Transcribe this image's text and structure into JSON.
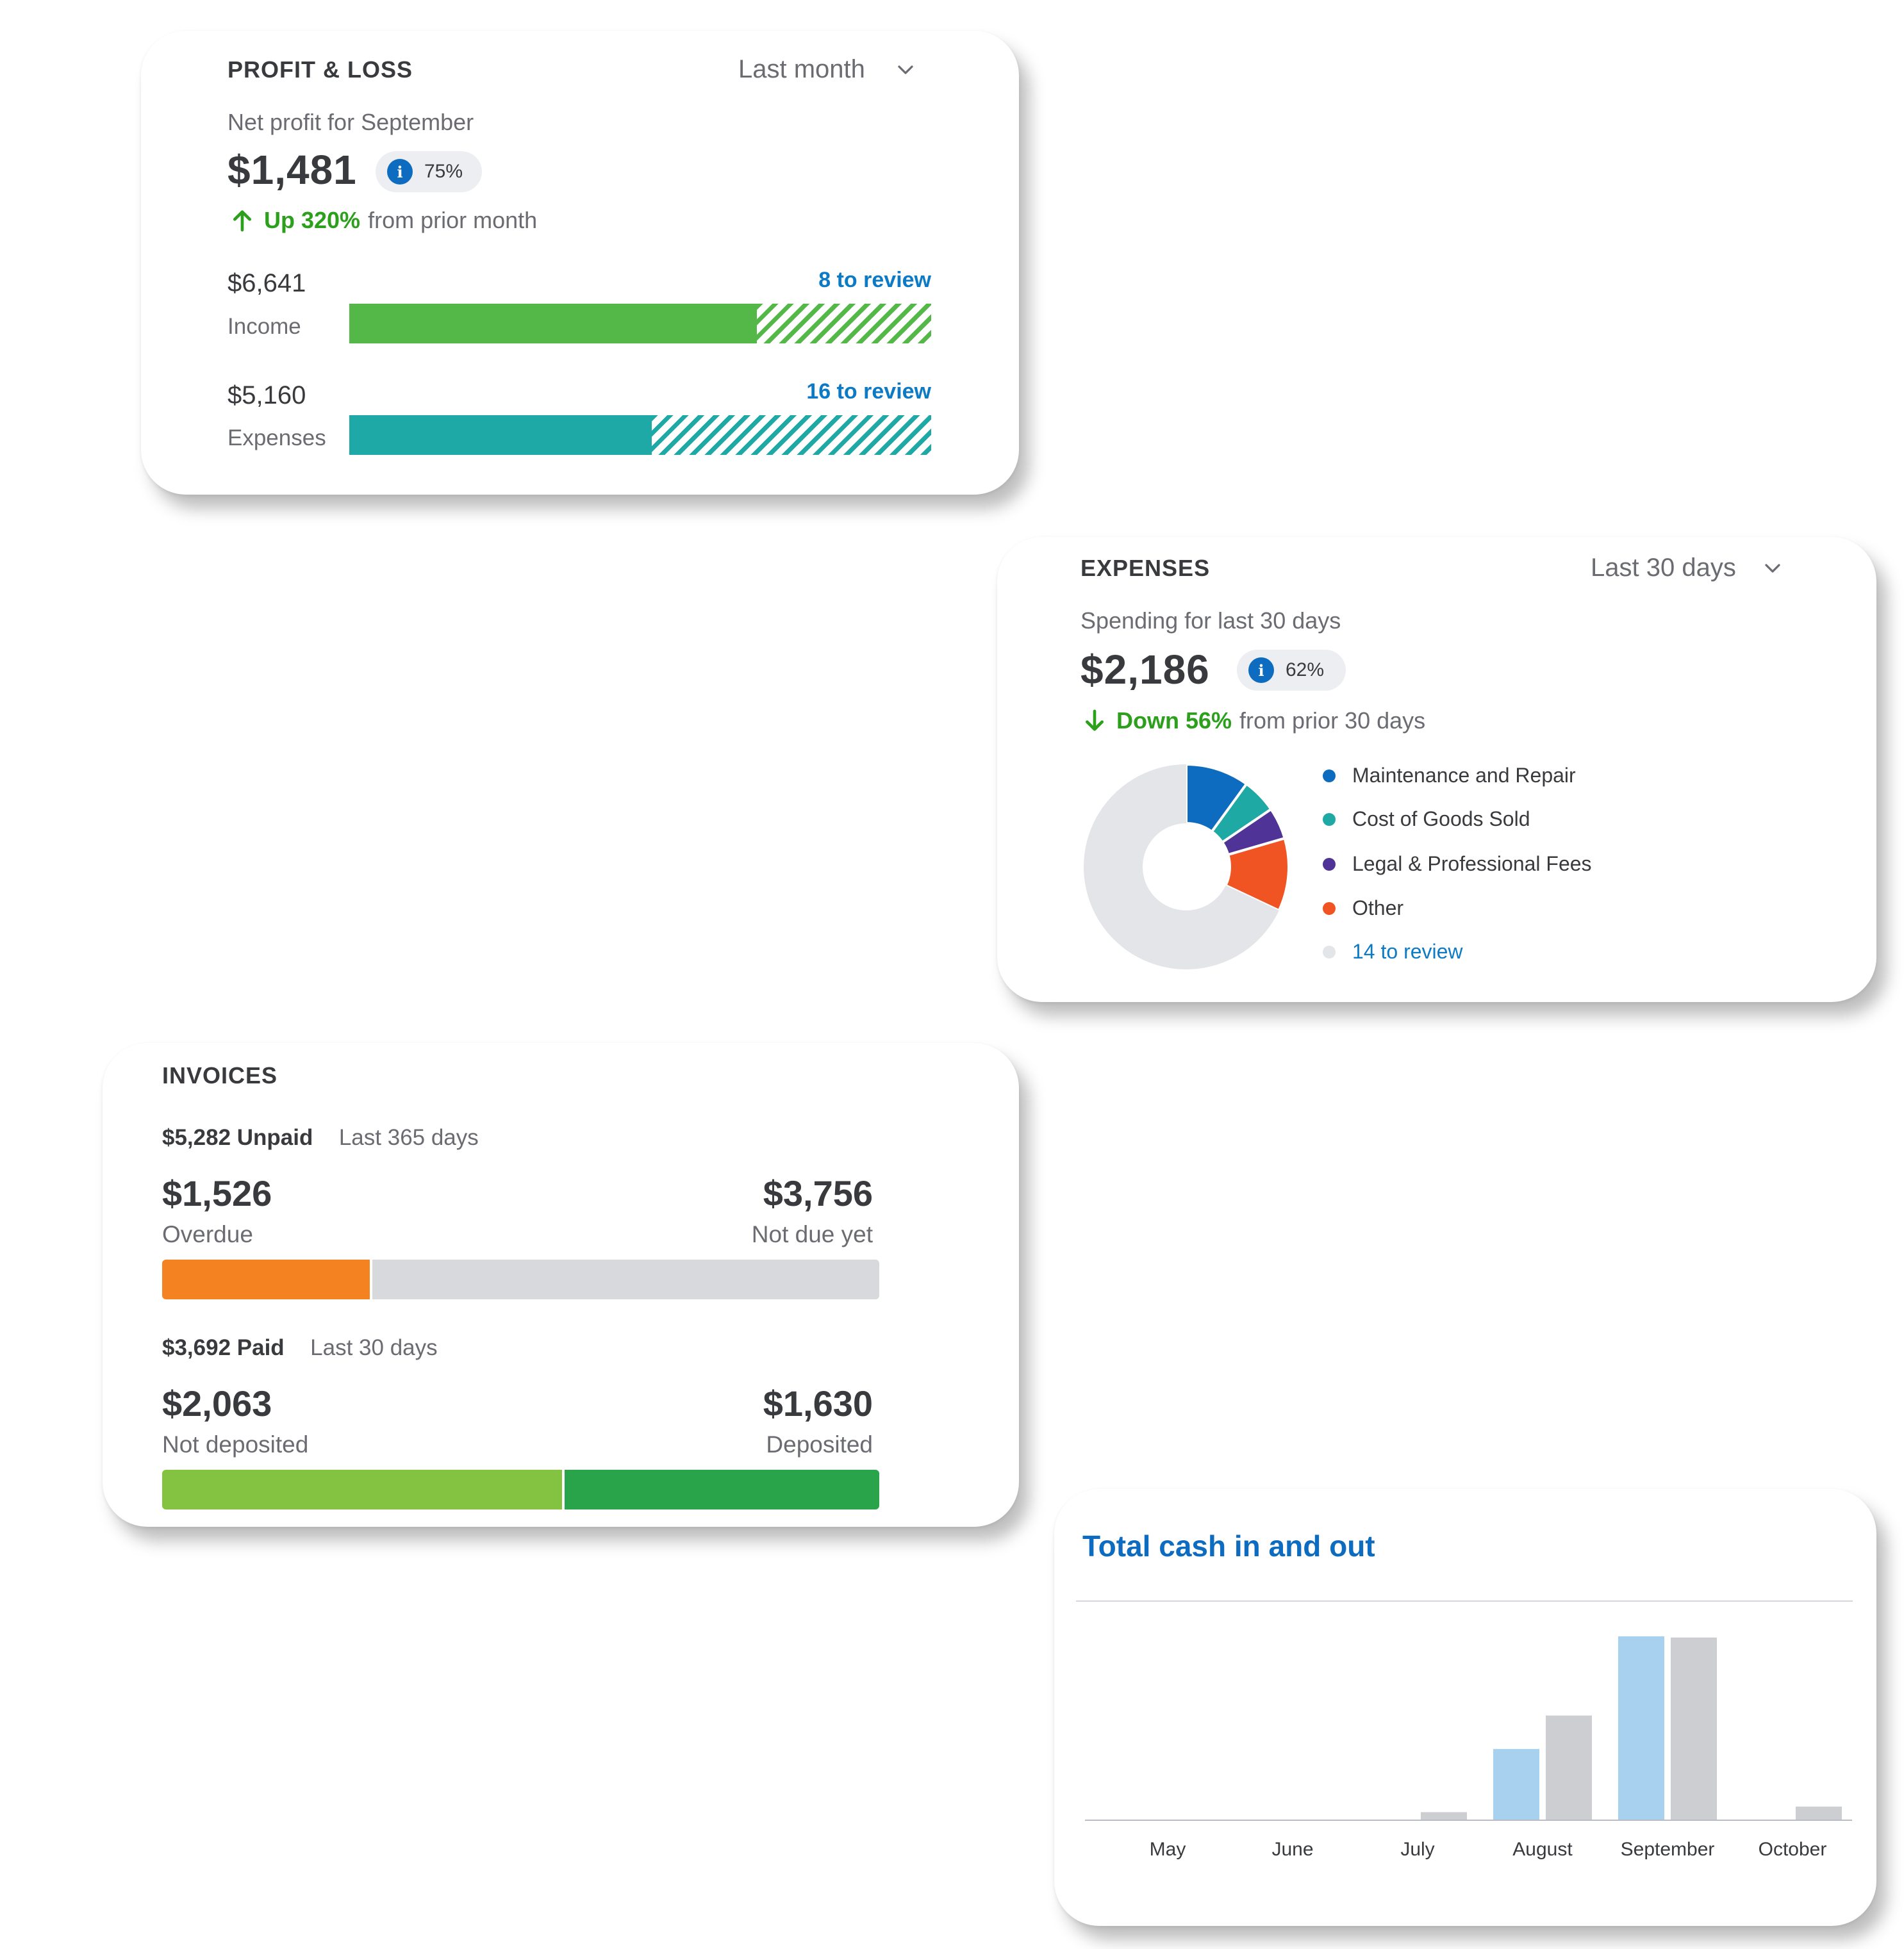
{
  "colors": {
    "income": "#53b848",
    "expenses_bar": "#1ea8a6",
    "maintenance": "#0d6cc0",
    "cogs": "#1fa9a4",
    "legal": "#4f3396",
    "other": "#f05423",
    "review": "#e3e5e8",
    "overdue": "#f58220",
    "not_due": "#d7d9dd",
    "not_deposited": "#84c341",
    "deposited": "#29a44a",
    "cash_in": "#a8d1f0",
    "cash_out": "#ccced2",
    "link": "#0d7ac6",
    "positive": "#2ca01c"
  },
  "profit_loss": {
    "title": "PROFIT & LOSS",
    "range": "Last month",
    "subtitle": "Net profit for September",
    "amount": "$1,481",
    "badge": "75%",
    "trend_strong": "Up 320%",
    "trend_rest": "from prior month",
    "income": {
      "value": "$6,641",
      "label": "Income",
      "review": "8 to review",
      "solid_fraction": 0.7
    },
    "expenses": {
      "value": "$5,160",
      "label": "Expenses",
      "review": "16 to review",
      "solid_fraction": 0.52
    }
  },
  "expenses": {
    "title": "EXPENSES",
    "range": "Last 30 days",
    "subtitle": "Spending for last 30 days",
    "amount": "$2,186",
    "badge": "62%",
    "trend_strong": "Down 56%",
    "trend_rest": "from prior 30 days",
    "legend": [
      {
        "label": "Maintenance and Repair",
        "color_key": "maintenance"
      },
      {
        "label": "Cost of Goods Sold",
        "color_key": "cogs"
      },
      {
        "label": "Legal & Professional Fees",
        "color_key": "legal"
      },
      {
        "label": "Other",
        "color_key": "other"
      },
      {
        "label": "14 to review",
        "color_key": "review"
      }
    ],
    "donut_fractions": [
      0.1,
      0.055,
      0.05,
      0.115,
      0.68
    ]
  },
  "invoices": {
    "title": "INVOICES",
    "unpaid_amount": "$5,282 Unpaid",
    "unpaid_range": "Last 365 days",
    "overdue": {
      "value": "$1,526",
      "label": "Overdue"
    },
    "not_due": {
      "value": "$3,756",
      "label": "Not due yet"
    },
    "paid_amount": "$3,692 Paid",
    "paid_range": "Last 30 days",
    "not_deposited": {
      "value": "$2,063",
      "label": "Not deposited"
    },
    "deposited": {
      "value": "$1,630",
      "label": "Deposited"
    }
  },
  "cash": {
    "title": "Total cash in and out"
  },
  "chart_data": {
    "type": "bar",
    "title": "Total cash in and out",
    "categories": [
      "May",
      "June",
      "July",
      "August",
      "September",
      "October"
    ],
    "series": [
      {
        "values": [
          0,
          0,
          0,
          0.38,
          1.0,
          0
        ]
      },
      {
        "values": [
          0,
          0,
          0.04,
          0.56,
          0.98,
          0.07
        ]
      }
    ],
    "ylim": [
      0,
      1
    ],
    "grid": false
  }
}
